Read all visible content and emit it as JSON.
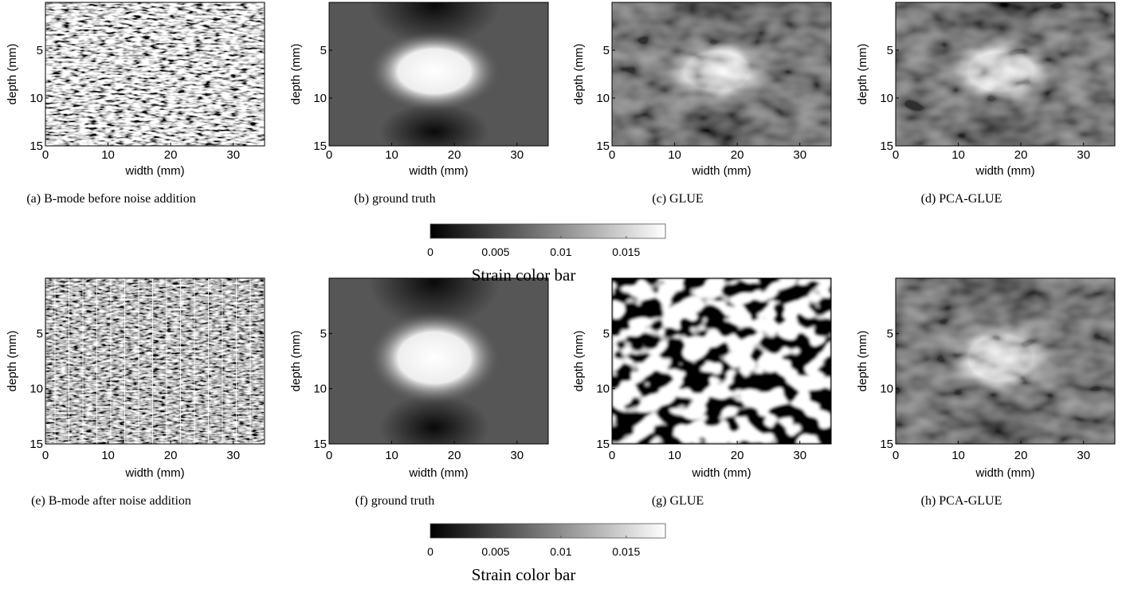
{
  "panels": [
    {
      "caption": "(a) B-mode before noise addition",
      "xlabel": "width (mm)",
      "ylabel": "depth (mm)",
      "xlim": [
        0,
        35
      ],
      "ylim": [
        0,
        15
      ],
      "xticks": [
        0,
        10,
        20,
        30
      ],
      "yticks": [
        5,
        10,
        15
      ]
    },
    {
      "caption": "(b) ground truth",
      "xlabel": "width (mm)",
      "ylabel": "depth (mm)",
      "xlim": [
        0,
        35
      ],
      "ylim": [
        0,
        15
      ],
      "xticks": [
        0,
        10,
        20,
        30
      ],
      "yticks": [
        5,
        10,
        15
      ]
    },
    {
      "caption": "(c) GLUE",
      "xlabel": "width (mm)",
      "ylabel": "depth (mm)",
      "xlim": [
        0,
        35
      ],
      "ylim": [
        0,
        15
      ],
      "xticks": [
        0,
        10,
        20,
        30
      ],
      "yticks": [
        5,
        10,
        15
      ]
    },
    {
      "caption": "(d) PCA-GLUE",
      "xlabel": "width (mm)",
      "ylabel": "depth (mm)",
      "xlim": [
        0,
        35
      ],
      "ylim": [
        0,
        15
      ],
      "xticks": [
        0,
        10,
        20,
        30
      ],
      "yticks": [
        5,
        10,
        15
      ]
    },
    {
      "caption": "(e) B-mode after noise addition",
      "xlabel": "width (mm)",
      "ylabel": "depth (mm)",
      "xlim": [
        0,
        35
      ],
      "ylim": [
        0,
        15
      ],
      "xticks": [
        0,
        10,
        20,
        30
      ],
      "yticks": [
        5,
        10,
        15
      ]
    },
    {
      "caption": "(f) ground truth",
      "xlabel": "width (mm)",
      "ylabel": "depth (mm)",
      "xlim": [
        0,
        35
      ],
      "ylim": [
        0,
        15
      ],
      "xticks": [
        0,
        10,
        20,
        30
      ],
      "yticks": [
        5,
        10,
        15
      ]
    },
    {
      "caption": "(g) GLUE",
      "xlabel": "width (mm)",
      "ylabel": "depth (mm)",
      "xlim": [
        0,
        35
      ],
      "ylim": [
        0,
        15
      ],
      "xticks": [
        0,
        10,
        20,
        30
      ],
      "yticks": [
        5,
        10,
        15
      ]
    },
    {
      "caption": "(h) PCA-GLUE",
      "xlabel": "width (mm)",
      "ylabel": "depth (mm)",
      "xlim": [
        0,
        35
      ],
      "ylim": [
        0,
        15
      ],
      "xticks": [
        0,
        10,
        20,
        30
      ],
      "yticks": [
        5,
        10,
        15
      ]
    }
  ],
  "colorbars": [
    {
      "label": "Strain color bar",
      "lim": [
        0,
        0.018
      ],
      "ticks": [
        0,
        0.005,
        0.01,
        0.015
      ]
    },
    {
      "label": "Strain color bar",
      "lim": [
        0,
        0.018
      ],
      "ticks": [
        0,
        0.005,
        0.01,
        0.015
      ]
    }
  ]
}
